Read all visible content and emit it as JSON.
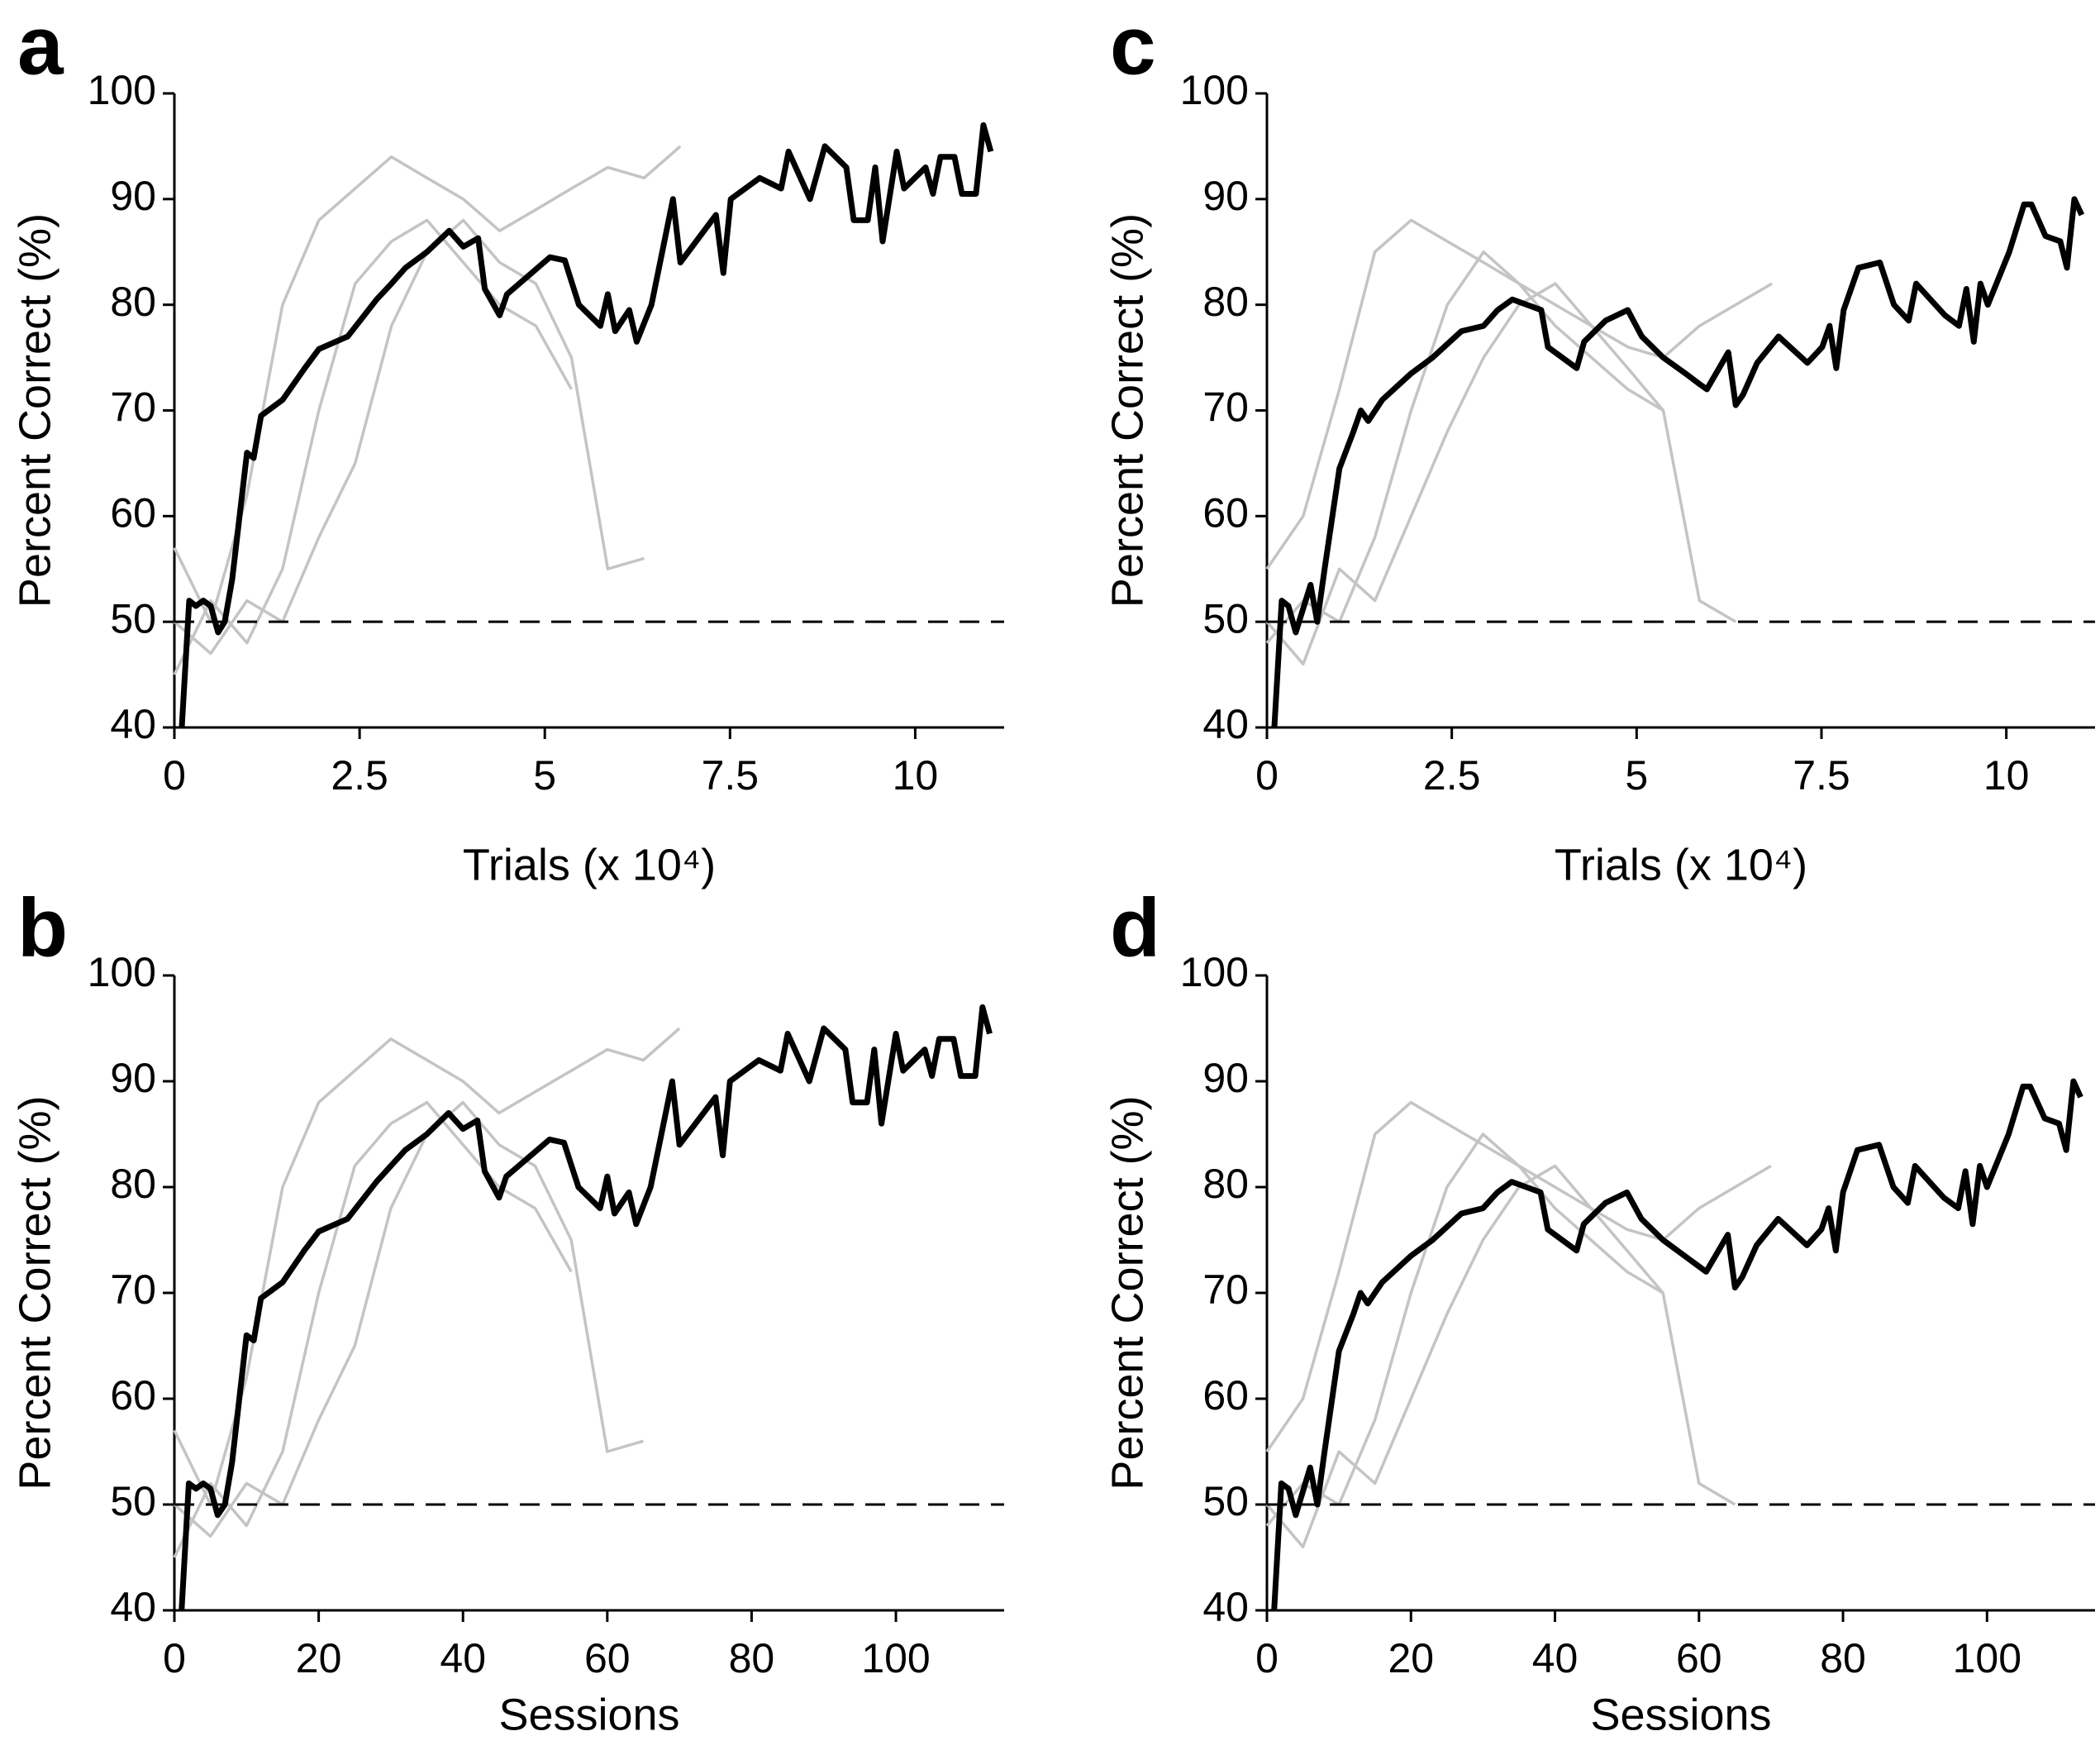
{
  "chart_data": [
    {
      "type": "line",
      "panel": "a",
      "ylabel": "Percent Correct (%)",
      "xlabel": "Trials (x 10⁴)",
      "xlim": [
        0,
        11.2
      ],
      "xticks": [
        0,
        2.5,
        5,
        7.5,
        10
      ],
      "ylim": [
        40,
        100
      ],
      "yticks": [
        40,
        50,
        60,
        70,
        80,
        90,
        100
      ],
      "hline": 50,
      "series": [
        {
          "color": "#c4c4c4",
          "x": [
            0,
            0.49,
            0.98,
            1.46,
            1.95,
            2.44,
            2.93,
            3.41,
            3.9,
            4.39,
            4.88,
            5.36,
            5.85,
            6.34,
            6.83
          ],
          "values": [
            57,
            50,
            62,
            80,
            88,
            91,
            94,
            92,
            90,
            87,
            89,
            91,
            93,
            92,
            95
          ]
        },
        {
          "color": "#c4c4c4",
          "x": [
            0,
            0.49,
            0.98,
            1.46,
            1.95,
            2.44,
            2.93,
            3.41,
            3.9,
            4.39,
            4.88,
            5.36
          ],
          "values": [
            45,
            52,
            48,
            55,
            70,
            82,
            86,
            88,
            84,
            80,
            78,
            72
          ]
        },
        {
          "color": "#c4c4c4",
          "x": [
            0,
            0.49,
            0.98,
            1.46,
            1.95,
            2.44,
            2.93,
            3.41,
            3.9,
            4.39,
            4.88,
            5.36,
            5.85,
            6.34
          ],
          "values": [
            50,
            47,
            52,
            50,
            58,
            65,
            78,
            85,
            88,
            84,
            82,
            75,
            55,
            56
          ]
        },
        {
          "color": "#000000",
          "x": [
            0.1,
            0.2,
            0.29,
            0.39,
            0.49,
            0.59,
            0.68,
            0.78,
            0.98,
            1.07,
            1.17,
            1.46,
            1.76,
            1.95,
            2.34,
            2.73,
            2.93,
            3.12,
            3.41,
            3.71,
            3.9,
            4.1,
            4.19,
            4.39,
            4.49,
            5.07,
            5.27,
            5.46,
            5.75,
            5.85,
            5.95,
            6.14,
            6.24,
            6.44,
            6.73,
            6.83,
            7.31,
            7.41,
            7.51,
            7.9,
            8.19,
            8.29,
            8.58,
            8.78,
            9.07,
            9.17,
            9.36,
            9.46,
            9.56,
            9.75,
            9.85,
            10.14,
            10.24,
            10.34,
            10.53,
            10.63,
            10.82,
            10.92,
            11.02
          ],
          "values": [
            40,
            52,
            51.5,
            52,
            51.5,
            49,
            50,
            54,
            66,
            65.5,
            69.5,
            71,
            74,
            75.8,
            77,
            80.5,
            82,
            83.5,
            85,
            87,
            85.5,
            86.3,
            81.5,
            79,
            81,
            84.5,
            84.2,
            80,
            78,
            81,
            77.5,
            79.5,
            76.5,
            80,
            90,
            84,
            88.5,
            83,
            90,
            92,
            91,
            94.5,
            90,
            95,
            93,
            88,
            88,
            93,
            86,
            94.5,
            91,
            93,
            90.5,
            94,
            94,
            90.5,
            90.5,
            97,
            94.5
          ]
        }
      ]
    },
    {
      "type": "line",
      "panel": "b",
      "ylabel": "Percent Correct (%)",
      "xlabel": "Sessions",
      "xlim": [
        0,
        115
      ],
      "xticks": [
        0,
        20,
        40,
        60,
        80,
        100
      ],
      "ylim": [
        40,
        100
      ],
      "yticks": [
        40,
        50,
        60,
        70,
        80,
        90,
        100
      ],
      "hline": 50,
      "series": [
        {
          "color": "#c4c4c4",
          "x": [
            0,
            5,
            10,
            15,
            20,
            25,
            30,
            35,
            40,
            45,
            50,
            55,
            60,
            65,
            70
          ],
          "values": [
            57,
            50,
            62,
            80,
            88,
            91,
            94,
            92,
            90,
            87,
            89,
            91,
            93,
            92,
            95
          ]
        },
        {
          "color": "#c4c4c4",
          "x": [
            0,
            5,
            10,
            15,
            20,
            25,
            30,
            35,
            40,
            45,
            50,
            55
          ],
          "values": [
            45,
            52,
            48,
            55,
            70,
            82,
            86,
            88,
            84,
            80,
            78,
            72
          ]
        },
        {
          "color": "#c4c4c4",
          "x": [
            0,
            5,
            10,
            15,
            20,
            25,
            30,
            35,
            40,
            45,
            50,
            55,
            60,
            65
          ],
          "values": [
            50,
            47,
            52,
            50,
            58,
            65,
            78,
            85,
            88,
            84,
            82,
            75,
            55,
            56
          ]
        },
        {
          "color": "#000000",
          "x": [
            1,
            2,
            3,
            4,
            5,
            6,
            7,
            8,
            10,
            11,
            12,
            15,
            18,
            20,
            24,
            28,
            30,
            32,
            35,
            38,
            40,
            42,
            43,
            45,
            46,
            52,
            54,
            56,
            59,
            60,
            61,
            63,
            64,
            66,
            69,
            70,
            75,
            76,
            77,
            81,
            84,
            85,
            88,
            90,
            93,
            94,
            96,
            97,
            98,
            100,
            101,
            104,
            105,
            106,
            108,
            109,
            111,
            112,
            113
          ],
          "values": [
            40,
            52,
            51.5,
            52,
            51.5,
            49,
            50,
            54,
            66,
            65.5,
            69.5,
            71,
            74,
            75.8,
            77,
            80.5,
            82,
            83.5,
            85,
            87,
            85.5,
            86.3,
            81.5,
            79,
            81,
            84.5,
            84.2,
            80,
            78,
            81,
            77.5,
            79.5,
            76.5,
            80,
            90,
            84,
            88.5,
            83,
            90,
            92,
            91,
            94.5,
            90,
            95,
            93,
            88,
            88,
            93,
            86,
            94.5,
            91,
            93,
            90.5,
            94,
            94,
            90.5,
            90.5,
            97,
            94.5
          ]
        }
      ]
    },
    {
      "type": "line",
      "panel": "c",
      "ylabel": "Percent Correct (%)",
      "xlabel": "Trials (x 10⁴)",
      "xlim": [
        0,
        11.2
      ],
      "xticks": [
        0,
        2.5,
        5,
        7.5,
        10
      ],
      "ylim": [
        40,
        100
      ],
      "yticks": [
        40,
        50,
        60,
        70,
        80,
        90,
        100
      ],
      "hline": 50,
      "series": [
        {
          "color": "#c4c4c4",
          "x": [
            0,
            0.49,
            0.98,
            1.46,
            1.95,
            2.44,
            2.93,
            3.41,
            3.9,
            4.39,
            4.88,
            5.36,
            5.85,
            6.34,
            6.83
          ],
          "values": [
            55,
            60,
            72,
            85,
            88,
            86,
            84,
            82,
            80,
            78,
            76,
            75,
            78,
            80,
            82
          ]
        },
        {
          "color": "#c4c4c4",
          "x": [
            0,
            0.49,
            0.98,
            1.46,
            1.95,
            2.44,
            2.93,
            3.41,
            3.9,
            4.39,
            4.88,
            5.36
          ],
          "values": [
            48,
            52,
            50,
            58,
            70,
            80,
            85,
            82,
            78,
            75,
            72,
            70
          ]
        },
        {
          "color": "#c4c4c4",
          "x": [
            0,
            0.49,
            0.98,
            1.46,
            1.95,
            2.44,
            2.93,
            3.41,
            3.9,
            4.39,
            4.88,
            5.36,
            5.85,
            6.34
          ],
          "values": [
            50,
            46,
            55,
            52,
            60,
            68,
            75,
            80,
            82,
            78,
            74,
            70,
            52,
            50
          ]
        },
        {
          "color": "#000000",
          "x": [
            0.1,
            0.2,
            0.29,
            0.39,
            0.59,
            0.68,
            0.78,
            0.98,
            1.17,
            1.27,
            1.37,
            1.56,
            1.95,
            2.24,
            2.63,
            2.93,
            3.12,
            3.32,
            3.71,
            3.8,
            4.19,
            4.29,
            4.58,
            4.88,
            5.07,
            5.36,
            5.66,
            5.85,
            5.95,
            6.24,
            6.34,
            6.44,
            6.63,
            6.92,
            7.31,
            7.51,
            7.61,
            7.7,
            7.8,
            8.0,
            8.29,
            8.48,
            8.68,
            8.78,
            9.17,
            9.36,
            9.46,
            9.56,
            9.65,
            9.75,
            10.04,
            10.24,
            10.34,
            10.53,
            10.73,
            10.82,
            10.92,
            11.02
          ],
          "values": [
            40,
            52,
            51.5,
            49,
            53.5,
            50,
            55,
            64.5,
            68,
            70,
            69,
            71,
            73.5,
            75,
            77.5,
            78,
            79.5,
            80.5,
            79.5,
            76,
            74,
            76.5,
            78.5,
            79.5,
            77,
            75,
            73.5,
            72.5,
            72,
            75.5,
            70.5,
            71.5,
            74.5,
            77,
            74.5,
            76,
            78,
            74,
            79.5,
            83.5,
            84,
            80,
            78.5,
            82,
            79,
            78,
            81.5,
            76.5,
            82,
            80,
            85,
            89.5,
            89.5,
            86.5,
            86,
            83.5,
            90,
            88.5
          ]
        }
      ]
    },
    {
      "type": "line",
      "panel": "d",
      "ylabel": "Percent Correct (%)",
      "xlabel": "Sessions",
      "xlim": [
        0,
        115
      ],
      "xticks": [
        0,
        20,
        40,
        60,
        80,
        100
      ],
      "ylim": [
        40,
        100
      ],
      "yticks": [
        40,
        50,
        60,
        70,
        80,
        90,
        100
      ],
      "hline": 50,
      "series": [
        {
          "color": "#c4c4c4",
          "x": [
            0,
            5,
            10,
            15,
            20,
            25,
            30,
            35,
            40,
            45,
            50,
            55,
            60,
            65,
            70
          ],
          "values": [
            55,
            60,
            72,
            85,
            88,
            86,
            84,
            82,
            80,
            78,
            76,
            75,
            78,
            80,
            82
          ]
        },
        {
          "color": "#c4c4c4",
          "x": [
            0,
            5,
            10,
            15,
            20,
            25,
            30,
            35,
            40,
            45,
            50,
            55
          ],
          "values": [
            48,
            52,
            50,
            58,
            70,
            80,
            85,
            82,
            78,
            75,
            72,
            70
          ]
        },
        {
          "color": "#c4c4c4",
          "x": [
            0,
            5,
            10,
            15,
            20,
            25,
            30,
            35,
            40,
            45,
            50,
            55,
            60,
            65
          ],
          "values": [
            50,
            46,
            55,
            52,
            60,
            68,
            75,
            80,
            82,
            78,
            74,
            70,
            52,
            50
          ]
        },
        {
          "color": "#000000",
          "x": [
            1,
            2,
            3,
            4,
            6,
            7,
            8,
            10,
            12,
            13,
            14,
            16,
            20,
            23,
            27,
            30,
            32,
            34,
            38,
            39,
            43,
            44,
            47,
            50,
            52,
            55,
            58,
            60,
            61,
            64,
            65,
            66,
            68,
            71,
            75,
            77,
            78,
            79,
            80,
            82,
            85,
            87,
            89,
            90,
            94,
            96,
            97,
            98,
            99,
            100,
            103,
            105,
            106,
            108,
            110,
            111,
            112,
            113
          ],
          "values": [
            40,
            52,
            51.5,
            49,
            53.5,
            50,
            55,
            64.5,
            68,
            70,
            69,
            71,
            73.5,
            75,
            77.5,
            78,
            79.5,
            80.5,
            79.5,
            76,
            74,
            76.5,
            78.5,
            79.5,
            77,
            75,
            73.5,
            72.5,
            72,
            75.5,
            70.5,
            71.5,
            74.5,
            77,
            74.5,
            76,
            78,
            74,
            79.5,
            83.5,
            84,
            80,
            78.5,
            82,
            79,
            78,
            81.5,
            76.5,
            82,
            80,
            85,
            89.5,
            89.5,
            86.5,
            86,
            83.5,
            90,
            88.5
          ]
        }
      ]
    }
  ]
}
